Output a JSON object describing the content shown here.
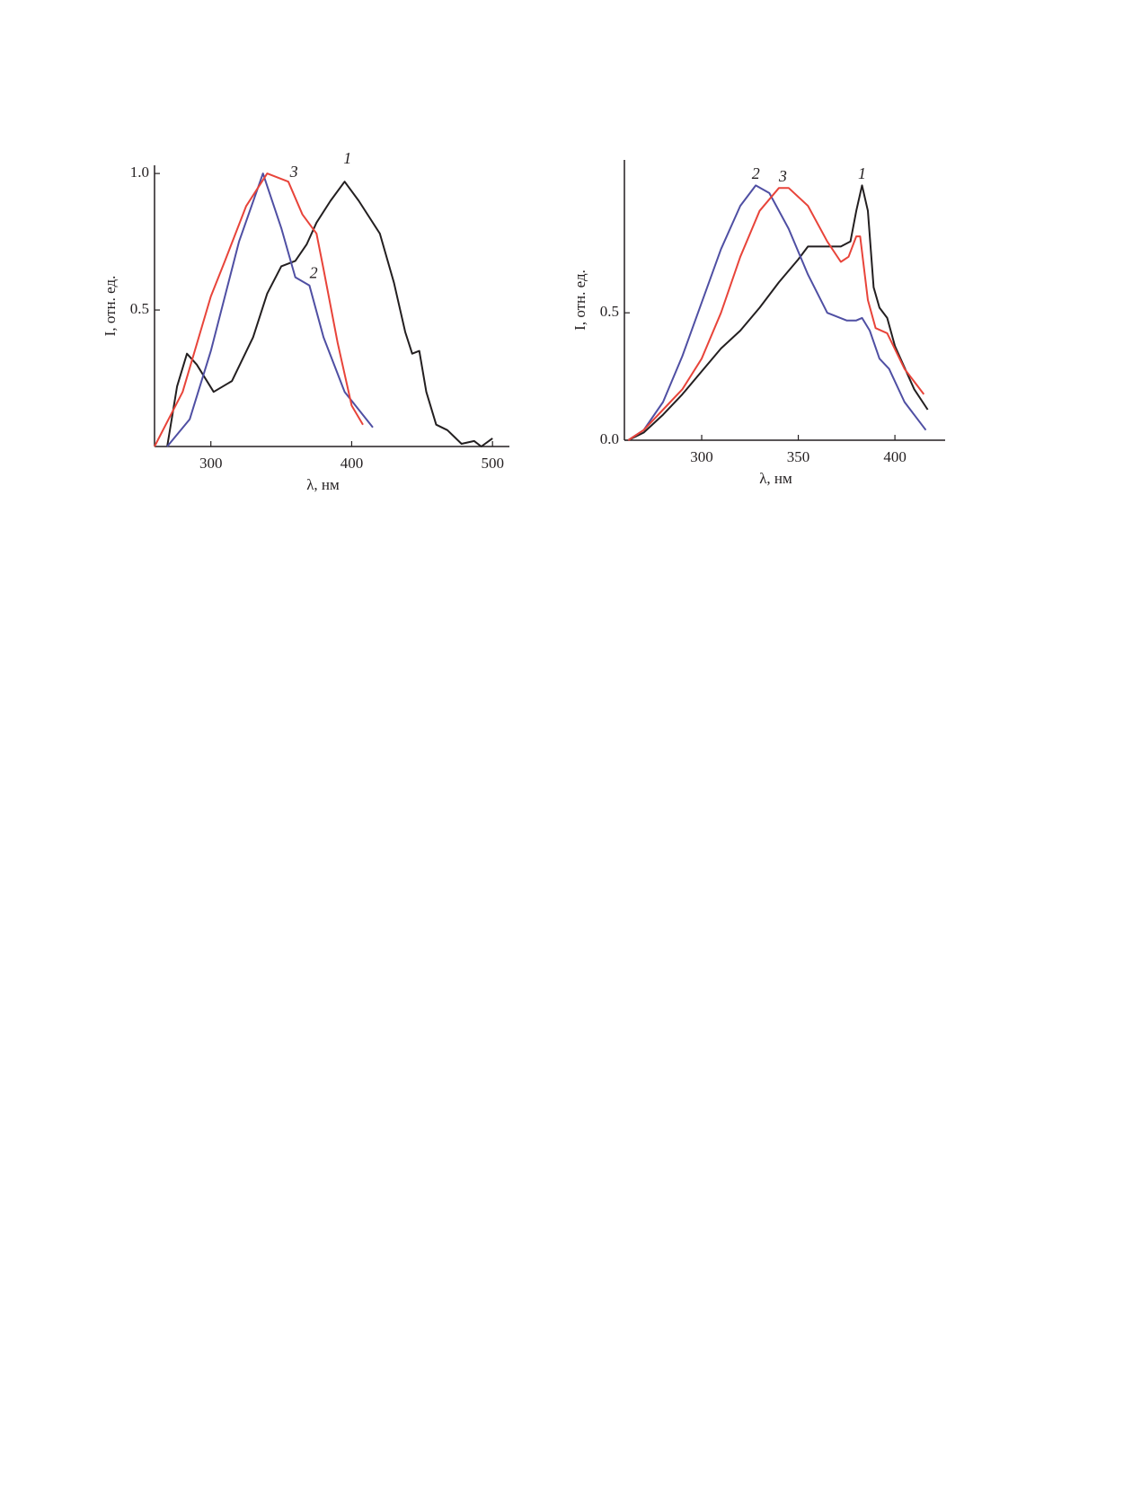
{
  "chart_data": [
    {
      "type": "line",
      "x_label": "λ, нм",
      "y_label": "I, отн. ед.",
      "xlim": [
        260,
        512
      ],
      "ylim": [
        0,
        1.03
      ],
      "xticks": [
        300,
        400,
        500
      ],
      "yticks": [
        0.5,
        {
          "value": 1,
          "label": "1.0"
        }
      ],
      "series": [
        {
          "color": "#231f20",
          "x": [
            269,
            276,
            283,
            290,
            302,
            315,
            330,
            340,
            350,
            360,
            368,
            375,
            385,
            395,
            405,
            420,
            430,
            438,
            443,
            448,
            453,
            460,
            468,
            478,
            487,
            492,
            500
          ],
          "values": [
            0.0,
            0.22,
            0.34,
            0.3,
            0.2,
            0.24,
            0.4,
            0.56,
            0.66,
            0.68,
            0.74,
            0.82,
            0.9,
            0.97,
            0.9,
            0.78,
            0.6,
            0.42,
            0.34,
            0.35,
            0.2,
            0.08,
            0.06,
            0.01,
            0.02,
            0.0,
            0.03
          ]
        },
        {
          "color": "#4f4fa3",
          "x": [
            269,
            285,
            300,
            320,
            337,
            350,
            360,
            370,
            380,
            395,
            415
          ],
          "values": [
            0.0,
            0.1,
            0.35,
            0.75,
            1.0,
            0.8,
            0.62,
            0.59,
            0.4,
            0.2,
            0.07
          ]
        },
        {
          "color": "#e8443a",
          "x": [
            260,
            280,
            300,
            310,
            325,
            340,
            355,
            365,
            375,
            380,
            390,
            400,
            408
          ],
          "values": [
            0.0,
            0.2,
            0.55,
            0.68,
            0.88,
            1.0,
            0.97,
            0.85,
            0.78,
            0.65,
            0.38,
            0.15,
            0.08
          ]
        }
      ],
      "annotations": [
        {
          "text": "1",
          "x": 397,
          "y": 1.05
        },
        {
          "text": "2",
          "x": 373,
          "y": 0.63
        },
        {
          "text": "3",
          "x": 359,
          "y": 1.0
        }
      ]
    },
    {
      "type": "line",
      "x_label": "λ, нм",
      "y_label": "I, отн. ед.",
      "xlim": [
        260,
        426
      ],
      "ylim": [
        0,
        1.1
      ],
      "xticks": [
        300,
        350,
        400
      ],
      "yticks": [
        {
          "value": 0,
          "label": "0.0"
        },
        0.5
      ],
      "series": [
        {
          "color": "#231f20",
          "x": [
            262,
            270,
            280,
            290,
            300,
            310,
            320,
            330,
            340,
            350,
            355,
            365,
            372,
            377,
            380,
            383,
            386,
            389,
            392,
            396,
            400,
            410,
            417
          ],
          "values": [
            0.0,
            0.03,
            0.1,
            0.18,
            0.27,
            0.36,
            0.43,
            0.52,
            0.62,
            0.71,
            0.76,
            0.76,
            0.76,
            0.78,
            0.9,
            1.0,
            0.9,
            0.6,
            0.52,
            0.48,
            0.37,
            0.2,
            0.12
          ]
        },
        {
          "color": "#4f4fa3",
          "x": [
            262,
            270,
            280,
            290,
            300,
            310,
            320,
            328,
            335,
            345,
            355,
            365,
            375,
            380,
            383,
            387,
            392,
            397,
            405,
            416
          ],
          "values": [
            0.0,
            0.04,
            0.15,
            0.33,
            0.54,
            0.75,
            0.92,
            1.0,
            0.97,
            0.83,
            0.65,
            0.5,
            0.47,
            0.47,
            0.48,
            0.43,
            0.32,
            0.28,
            0.15,
            0.04
          ]
        },
        {
          "color": "#e8443a",
          "x": [
            262,
            270,
            280,
            290,
            300,
            310,
            320,
            330,
            340,
            345,
            355,
            365,
            372,
            376,
            380,
            382,
            386,
            390,
            396,
            405,
            415
          ],
          "values": [
            0.0,
            0.04,
            0.12,
            0.2,
            0.32,
            0.5,
            0.72,
            0.9,
            0.99,
            0.99,
            0.92,
            0.78,
            0.7,
            0.72,
            0.8,
            0.8,
            0.55,
            0.44,
            0.42,
            0.28,
            0.18
          ]
        }
      ],
      "annotations": [
        {
          "text": "2",
          "x": 328,
          "y": 1.04
        },
        {
          "text": "3",
          "x": 342,
          "y": 1.03
        },
        {
          "text": "1",
          "x": 383,
          "y": 1.04
        }
      ]
    }
  ]
}
